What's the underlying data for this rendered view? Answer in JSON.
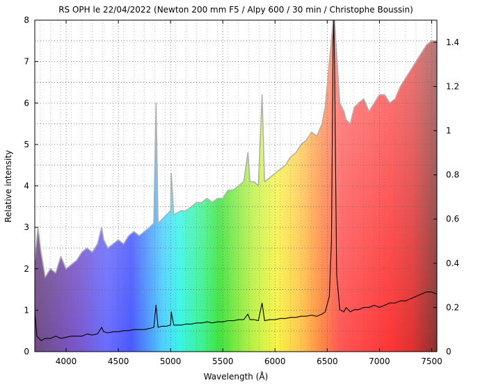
{
  "chart_data": {
    "type": "line",
    "title": "RS OPH le 22/04/2022 (Newton 200 mm F5 / Alpy 600 / 30 min / Christophe Boussin)",
    "xlabel": "Wavelength (Å)",
    "ylabel": "Relative intensity",
    "xlim": [
      3700,
      7550
    ],
    "ylim": [
      0,
      8
    ],
    "y2lim": [
      0,
      1.5
    ],
    "x_ticks": [
      4000,
      4500,
      5000,
      5500,
      6000,
      6500,
      7000,
      7500
    ],
    "y_ticks": [
      0,
      1,
      2,
      3,
      4,
      5,
      6,
      7,
      8
    ],
    "y2_ticks": [
      0,
      0.2,
      0.4,
      0.6,
      0.8,
      1,
      1.2,
      1.4
    ],
    "grid": true,
    "background": "visible-spectrum color gradient, filled under the gray scaled profile",
    "colors": {
      "profile_line": "#000000",
      "scaled_profile": "#b0b0b0"
    },
    "series": [
      {
        "axis": "y2",
        "x": [
          3700,
          3720,
          3760,
          3800,
          3850,
          3900,
          3950,
          4000,
          4050,
          4100,
          4150,
          4200,
          4250,
          4300,
          4340,
          4360,
          4400,
          4450,
          4500,
          4550,
          4600,
          4650,
          4700,
          4750,
          4800,
          4840,
          4861,
          4880,
          4920,
          4960,
          5000,
          5007,
          5030,
          5100,
          5150,
          5200,
          5250,
          5300,
          5350,
          5400,
          5450,
          5500,
          5550,
          5600,
          5650,
          5700,
          5740,
          5760,
          5800,
          5840,
          5876,
          5900,
          5950,
          6000,
          6050,
          6100,
          6150,
          6200,
          6250,
          6300,
          6350,
          6400,
          6450,
          6480,
          6520,
          6540,
          6556,
          6563,
          6570,
          6590,
          6620,
          6660,
          6680,
          6720,
          6760,
          6800,
          6850,
          6900,
          6950,
          7000,
          7050,
          7100,
          7150,
          7200,
          7250,
          7300,
          7350,
          7400,
          7450,
          7500,
          7550
        ],
        "y": [
          0.18,
          0.07,
          0.05,
          0.06,
          0.06,
          0.07,
          0.06,
          0.065,
          0.07,
          0.07,
          0.07,
          0.08,
          0.075,
          0.08,
          0.11,
          0.09,
          0.085,
          0.09,
          0.09,
          0.095,
          0.095,
          0.1,
          0.1,
          0.1,
          0.105,
          0.11,
          0.21,
          0.11,
          0.115,
          0.115,
          0.12,
          0.18,
          0.12,
          0.12,
          0.125,
          0.125,
          0.13,
          0.13,
          0.135,
          0.13,
          0.135,
          0.135,
          0.14,
          0.14,
          0.145,
          0.145,
          0.17,
          0.145,
          0.145,
          0.14,
          0.22,
          0.14,
          0.145,
          0.145,
          0.15,
          0.15,
          0.155,
          0.155,
          0.16,
          0.16,
          0.165,
          0.16,
          0.17,
          0.18,
          0.25,
          0.5,
          1.4,
          1.5,
          1.3,
          0.35,
          0.19,
          0.18,
          0.2,
          0.18,
          0.19,
          0.19,
          0.2,
          0.2,
          0.21,
          0.2,
          0.21,
          0.22,
          0.22,
          0.23,
          0.23,
          0.24,
          0.25,
          0.26,
          0.27,
          0.27,
          0.26
        ]
      },
      {
        "axis": "y",
        "x": [
          3700,
          3730,
          3760,
          3800,
          3850,
          3900,
          3950,
          4000,
          4050,
          4100,
          4150,
          4200,
          4250,
          4300,
          4340,
          4360,
          4400,
          4450,
          4500,
          4550,
          4600,
          4650,
          4700,
          4750,
          4800,
          4840,
          4861,
          4880,
          4920,
          4960,
          5000,
          5007,
          5030,
          5100,
          5150,
          5200,
          5250,
          5300,
          5350,
          5400,
          5450,
          5500,
          5550,
          5600,
          5650,
          5700,
          5740,
          5760,
          5800,
          5840,
          5876,
          5900,
          5950,
          6000,
          6050,
          6100,
          6150,
          6200,
          6250,
          6300,
          6350,
          6400,
          6450,
          6480,
          6520,
          6540,
          6556,
          6563,
          6570,
          6590,
          6620,
          6660,
          6680,
          6720,
          6760,
          6800,
          6850,
          6900,
          6950,
          7000,
          7050,
          7100,
          7150,
          7200,
          7250,
          7300,
          7350,
          7400,
          7450,
          7500,
          7550
        ],
        "y": [
          2.2,
          3.0,
          2.4,
          1.8,
          2.0,
          1.9,
          2.3,
          2.0,
          2.1,
          2.2,
          2.4,
          2.5,
          2.4,
          2.6,
          3.0,
          2.7,
          2.5,
          2.6,
          2.7,
          2.6,
          2.8,
          2.9,
          2.8,
          2.9,
          3.0,
          3.1,
          6.0,
          3.1,
          3.2,
          3.3,
          3.4,
          4.3,
          3.3,
          3.4,
          3.4,
          3.5,
          3.6,
          3.6,
          3.7,
          3.6,
          3.7,
          3.7,
          3.9,
          3.9,
          4.0,
          4.1,
          4.8,
          4.1,
          4.1,
          4.0,
          6.2,
          4.1,
          4.2,
          4.3,
          4.4,
          4.5,
          4.7,
          4.8,
          5.0,
          5.1,
          5.3,
          5.2,
          5.5,
          5.9,
          7.0,
          7.5,
          8.0,
          8.0,
          8.0,
          7.2,
          6.0,
          5.8,
          5.6,
          5.5,
          5.9,
          6.0,
          6.1,
          5.8,
          6.0,
          6.2,
          6.2,
          6.0,
          6.1,
          6.4,
          6.6,
          6.8,
          7.0,
          7.2,
          7.4,
          7.5,
          7.5
        ]
      }
    ]
  }
}
